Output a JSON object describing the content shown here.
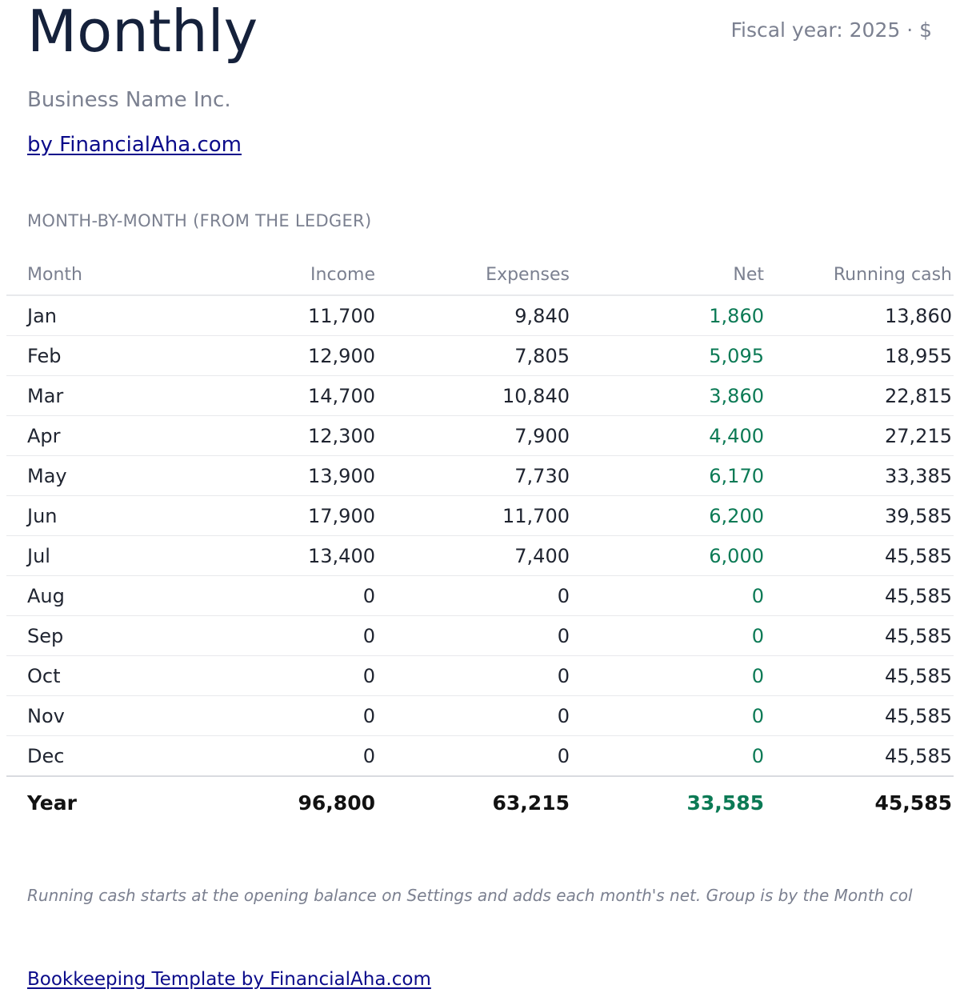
{
  "header": {
    "title": "Monthly",
    "fiscal_year": "Fiscal year: 2025 · $",
    "business_name": "Business Name Inc.",
    "by_link": "by FinancialAha.com"
  },
  "section": {
    "label": "MONTH-BY-MONTH (FROM THE LEDGER)"
  },
  "table": {
    "columns": [
      "Month",
      "Income",
      "Expenses",
      "Net",
      "Running cash"
    ],
    "rows": [
      {
        "month": "Jan",
        "income": "11,700",
        "expenses": "9,840",
        "net": "1,860",
        "running": "13,860"
      },
      {
        "month": "Feb",
        "income": "12,900",
        "expenses": "7,805",
        "net": "5,095",
        "running": "18,955"
      },
      {
        "month": "Mar",
        "income": "14,700",
        "expenses": "10,840",
        "net": "3,860",
        "running": "22,815"
      },
      {
        "month": "Apr",
        "income": "12,300",
        "expenses": "7,900",
        "net": "4,400",
        "running": "27,215"
      },
      {
        "month": "May",
        "income": "13,900",
        "expenses": "7,730",
        "net": "6,170",
        "running": "33,385"
      },
      {
        "month": "Jun",
        "income": "17,900",
        "expenses": "11,700",
        "net": "6,200",
        "running": "39,585"
      },
      {
        "month": "Jul",
        "income": "13,400",
        "expenses": "7,400",
        "net": "6,000",
        "running": "45,585"
      },
      {
        "month": "Aug",
        "income": "0",
        "expenses": "0",
        "net": "0",
        "running": "45,585"
      },
      {
        "month": "Sep",
        "income": "0",
        "expenses": "0",
        "net": "0",
        "running": "45,585"
      },
      {
        "month": "Oct",
        "income": "0",
        "expenses": "0",
        "net": "0",
        "running": "45,585"
      },
      {
        "month": "Nov",
        "income": "0",
        "expenses": "0",
        "net": "0",
        "running": "45,585"
      },
      {
        "month": "Dec",
        "income": "0",
        "expenses": "0",
        "net": "0",
        "running": "45,585"
      }
    ],
    "total": {
      "month": "Year",
      "income": "96,800",
      "expenses": "63,215",
      "net": "33,585",
      "running": "45,585"
    }
  },
  "note": "Running cash starts at the opening balance on Settings and adds each month's net. Group is by the Month col",
  "footer": {
    "link": "Bookkeeping Template by FinancialAha.com"
  },
  "colors": {
    "title": "#15213b",
    "muted": "#7b8090",
    "link": "#0b0b8a",
    "net_positive": "#0b7a55"
  }
}
